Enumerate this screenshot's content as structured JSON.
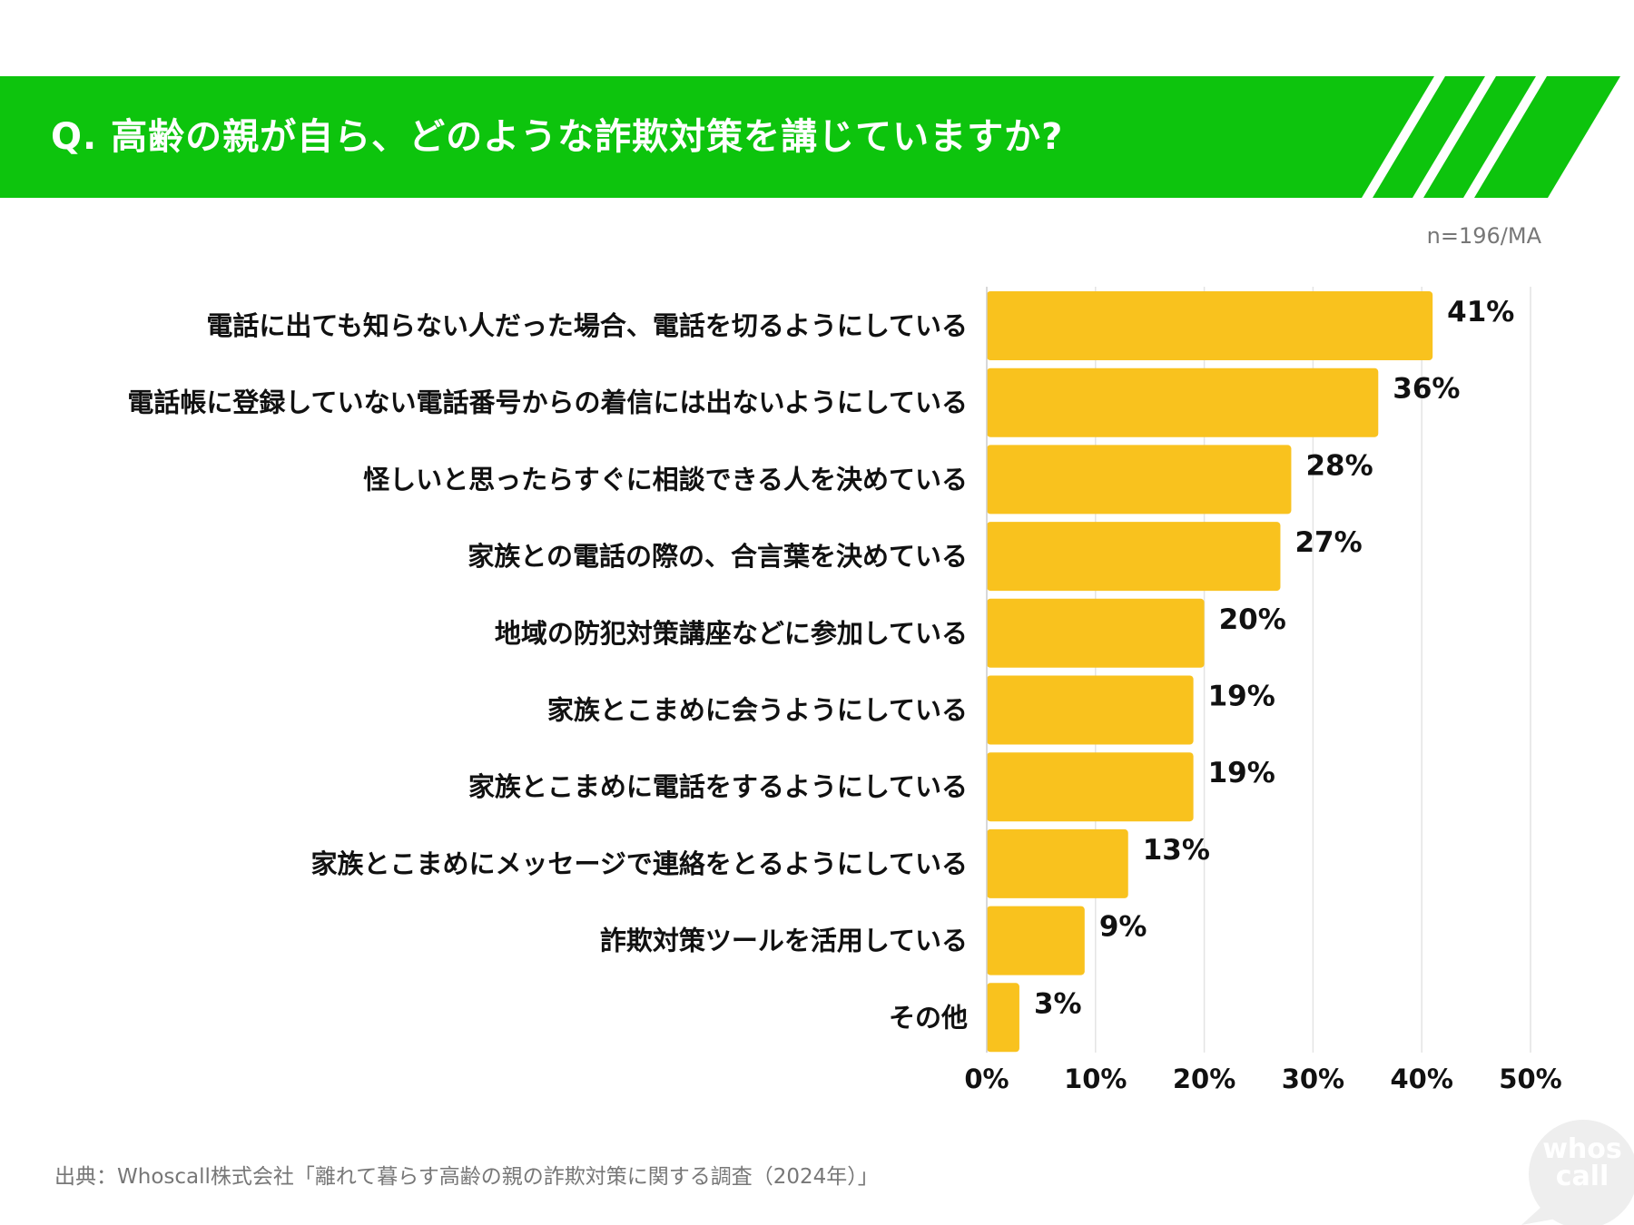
{
  "header": {
    "title": "Q. 高齢の親が自ら、どのような詐欺対策を講じていますか?"
  },
  "sample_note": "n=196/MA",
  "source": "出典：Whoscall株式会社「離れて暮らす高齢の親の詐欺対策に関する調査（2024年）」",
  "logo": {
    "line1": "whos",
    "line2": "call"
  },
  "colors": {
    "banner": "#0dc40d",
    "bar": "#f9c21e",
    "text": "#111111",
    "grid": "#e4e4e4",
    "muted": "#777777"
  },
  "chart_data": {
    "type": "bar",
    "orientation": "horizontal",
    "title": "Q. 高齢の親が自ら、どのような詐欺対策を講じていますか?",
    "xlabel": "",
    "ylabel": "",
    "unit": "%",
    "xlim": [
      0,
      50
    ],
    "ticks": [
      0,
      10,
      20,
      30,
      40,
      50
    ],
    "tick_labels": [
      "0%",
      "10%",
      "20%",
      "30%",
      "40%",
      "50%"
    ],
    "grid": true,
    "categories": [
      "電話に出ても知らない人だった場合、電話を切るようにしている",
      "電話帳に登録していない電話番号からの着信には出ないようにしている",
      "怪しいと思ったらすぐに相談できる人を決めている",
      "家族との電話の際の、合言葉を決めている",
      "地域の防犯対策講座などに参加している",
      "家族とこまめに会うようにしている",
      "家族とこまめに電話をするようにしている",
      "家族とこまめにメッセージで連絡をとるようにしている",
      "詐欺対策ツールを活用している",
      "その他"
    ],
    "values": [
      41,
      36,
      28,
      27,
      20,
      19,
      19,
      13,
      9,
      3
    ],
    "value_labels": [
      "41%",
      "36%",
      "28%",
      "27%",
      "20%",
      "19%",
      "19%",
      "13%",
      "9%",
      "3%"
    ]
  }
}
